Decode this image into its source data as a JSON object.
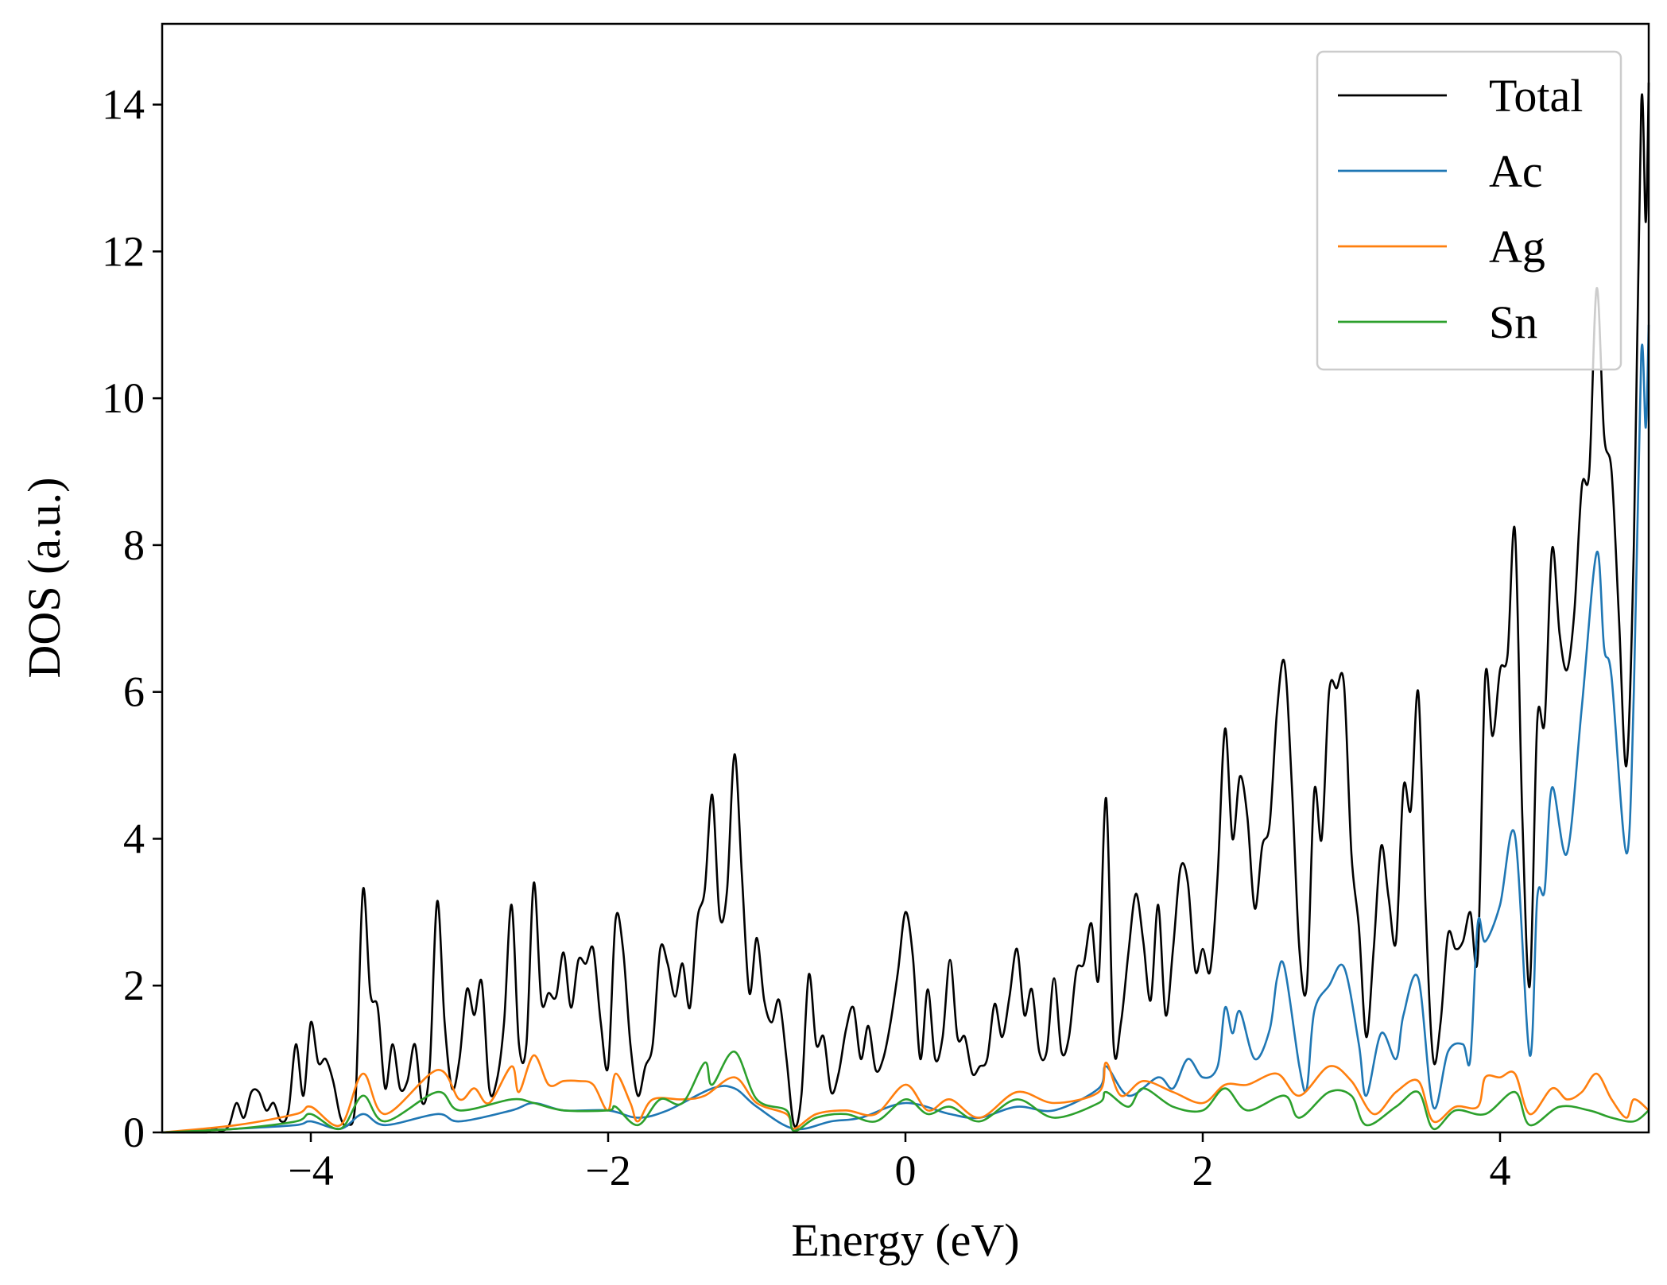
{
  "chart_data": {
    "type": "line",
    "title": "",
    "xlabel": "Energy (eV)",
    "ylabel": "DOS (a.u.)",
    "xlim": [
      -5,
      5
    ],
    "ylim": [
      0,
      15.1
    ],
    "xticks": [
      -4,
      -2,
      0,
      2,
      4
    ],
    "xtick_labels": [
      "−4",
      "−2",
      "0",
      "2",
      "4"
    ],
    "yticks": [
      0,
      2,
      4,
      6,
      8,
      10,
      12,
      14
    ],
    "ytick_labels": [
      "0",
      "2",
      "4",
      "6",
      "8",
      "10",
      "12",
      "14"
    ],
    "grid": false,
    "legend_position": "top-right",
    "series": [
      {
        "name": "Total",
        "color": "#000000",
        "x": [
          -5,
          -4.75,
          -4.7,
          -4.65,
          -4.6,
          -4.55,
          -4.5,
          -4.45,
          -4.4,
          -4.35,
          -4.3,
          -4.25,
          -4.2,
          -4.15,
          -4.1,
          -4.05,
          -4.0,
          -3.95,
          -3.9,
          -3.85,
          -3.8,
          -3.75,
          -3.7,
          -3.65,
          -3.6,
          -3.55,
          -3.5,
          -3.45,
          -3.4,
          -3.35,
          -3.3,
          -3.25,
          -3.2,
          -3.15,
          -3.1,
          -3.05,
          -3.0,
          -2.95,
          -2.9,
          -2.85,
          -2.8,
          -2.75,
          -2.7,
          -2.65,
          -2.6,
          -2.55,
          -2.5,
          -2.45,
          -2.4,
          -2.35,
          -2.3,
          -2.25,
          -2.2,
          -2.15,
          -2.1,
          -2.05,
          -2.0,
          -1.95,
          -1.9,
          -1.85,
          -1.8,
          -1.75,
          -1.7,
          -1.65,
          -1.6,
          -1.55,
          -1.5,
          -1.45,
          -1.4,
          -1.35,
          -1.3,
          -1.25,
          -1.2,
          -1.15,
          -1.1,
          -1.05,
          -1.0,
          -0.95,
          -0.9,
          -0.85,
          -0.8,
          -0.75,
          -0.7,
          -0.65,
          -0.6,
          -0.55,
          -0.5,
          -0.45,
          -0.4,
          -0.35,
          -0.3,
          -0.25,
          -0.2,
          -0.15,
          -0.1,
          -0.05,
          0.0,
          0.05,
          0.1,
          0.15,
          0.2,
          0.25,
          0.3,
          0.35,
          0.4,
          0.45,
          0.5,
          0.55,
          0.6,
          0.65,
          0.7,
          0.75,
          0.8,
          0.85,
          0.9,
          0.95,
          1.0,
          1.05,
          1.1,
          1.15,
          1.2,
          1.25,
          1.3,
          1.35,
          1.4,
          1.45,
          1.5,
          1.55,
          1.6,
          1.65,
          1.7,
          1.75,
          1.8,
          1.85,
          1.9,
          1.95,
          2.0,
          2.05,
          2.1,
          2.15,
          2.2,
          2.25,
          2.3,
          2.35,
          2.4,
          2.45,
          2.5,
          2.55,
          2.6,
          2.65,
          2.7,
          2.75,
          2.8,
          2.85,
          2.9,
          2.95,
          3.0,
          3.05,
          3.1,
          3.15,
          3.2,
          3.25,
          3.3,
          3.35,
          3.4,
          3.45,
          3.5,
          3.55,
          3.6,
          3.65,
          3.7,
          3.75,
          3.8,
          3.85,
          3.9,
          3.95,
          4.0,
          4.05,
          4.1,
          4.15,
          4.2,
          4.25,
          4.3,
          4.35,
          4.4,
          4.45,
          4.5,
          4.55,
          4.6,
          4.65,
          4.7,
          4.75,
          4.8,
          4.85,
          4.9,
          4.95,
          4.98,
          5.0
        ],
        "y": [
          0,
          0,
          0,
          0.05,
          0.02,
          0.1,
          0.4,
          0.2,
          0.55,
          0.55,
          0.3,
          0.4,
          0.15,
          0.3,
          1.2,
          0.5,
          1.5,
          0.95,
          1.0,
          0.7,
          0.2,
          0.1,
          0.4,
          3.3,
          1.9,
          1.7,
          0.6,
          1.2,
          0.6,
          0.7,
          1.2,
          0.4,
          0.9,
          3.15,
          1.5,
          0.6,
          1.0,
          1.95,
          1.6,
          2.05,
          0.6,
          0.7,
          1.5,
          3.1,
          1.2,
          1.2,
          3.4,
          1.8,
          1.9,
          1.85,
          2.45,
          1.7,
          2.35,
          2.3,
          2.5,
          1.5,
          0.9,
          2.9,
          2.5,
          1.2,
          0.5,
          0.9,
          1.2,
          2.5,
          2.3,
          1.85,
          2.3,
          1.7,
          2.9,
          3.3,
          4.6,
          2.95,
          3.3,
          5.15,
          3.5,
          1.9,
          2.65,
          1.8,
          1.5,
          1.8,
          1.0,
          0.1,
          0.5,
          2.15,
          1.2,
          1.3,
          0.55,
          0.8,
          1.4,
          1.7,
          1.0,
          1.45,
          0.85,
          1.0,
          1.5,
          2.2,
          3.0,
          2.4,
          1.0,
          1.95,
          1.0,
          1.3,
          2.35,
          1.3,
          1.3,
          0.8,
          0.9,
          1.0,
          1.75,
          1.3,
          1.85,
          2.5,
          1.6,
          1.95,
          1.1,
          1.1,
          2.1,
          1.1,
          1.3,
          2.2,
          2.3,
          2.85,
          2.1,
          4.55,
          1.2,
          1.5,
          2.45,
          3.25,
          2.6,
          1.8,
          3.1,
          1.6,
          2.5,
          3.6,
          3.4,
          2.2,
          2.5,
          2.2,
          3.5,
          5.5,
          4.0,
          4.85,
          4.3,
          3.05,
          3.9,
          4.2,
          5.75,
          6.4,
          4.7,
          2.5,
          2.0,
          4.65,
          4.0,
          6.0,
          6.05,
          6.1,
          3.8,
          2.8,
          1.3,
          2.5,
          3.9,
          3.2,
          2.6,
          4.7,
          4.4,
          6.0,
          3.0,
          1.0,
          1.5,
          2.7,
          2.5,
          2.6,
          3.0,
          2.4,
          6.2,
          5.4,
          6.3,
          6.5,
          8.2,
          4.3,
          2.0,
          5.6,
          5.6,
          7.95,
          6.8,
          6.3,
          7.1,
          8.8,
          9.0,
          11.5,
          9.5,
          9.0,
          7.0,
          5.0,
          8.0,
          14.0,
          12.4,
          14.3
        ]
      },
      {
        "name": "Ac",
        "color": "#1f77b4",
        "x": [
          -5,
          -4.5,
          -4.1,
          -4.0,
          -3.8,
          -3.65,
          -3.5,
          -3.15,
          -3.0,
          -2.65,
          -2.5,
          -2.3,
          -2.0,
          -1.8,
          -1.6,
          -1.3,
          -1.15,
          -1.0,
          -0.75,
          -0.5,
          -0.3,
          0,
          0.3,
          0.5,
          0.75,
          1.0,
          1.3,
          1.35,
          1.5,
          1.7,
          1.8,
          1.9,
          2.0,
          2.1,
          2.15,
          2.2,
          2.25,
          2.35,
          2.45,
          2.5,
          2.55,
          2.65,
          2.7,
          2.75,
          2.85,
          2.95,
          3.05,
          3.1,
          3.2,
          3.3,
          3.35,
          3.45,
          3.55,
          3.65,
          3.75,
          3.8,
          3.85,
          3.9,
          4.0,
          4.1,
          4.2,
          4.25,
          4.3,
          4.35,
          4.45,
          4.55,
          4.65,
          4.7,
          4.75,
          4.85,
          4.9,
          4.95,
          4.98,
          5.0
        ],
        "y": [
          0,
          0.05,
          0.1,
          0.15,
          0.05,
          0.25,
          0.1,
          0.25,
          0.15,
          0.3,
          0.4,
          0.3,
          0.3,
          0.2,
          0.3,
          0.6,
          0.6,
          0.35,
          0.05,
          0.15,
          0.2,
          0.4,
          0.25,
          0.2,
          0.35,
          0.3,
          0.6,
          0.9,
          0.5,
          0.75,
          0.6,
          1.0,
          0.75,
          0.9,
          1.7,
          1.35,
          1.65,
          1.0,
          1.4,
          2.1,
          2.25,
          0.9,
          0.6,
          1.65,
          2.0,
          2.25,
          1.2,
          0.5,
          1.35,
          1.0,
          1.6,
          2.1,
          0.35,
          1.1,
          1.2,
          1.0,
          2.85,
          2.6,
          3.1,
          4.05,
          1.05,
          3.2,
          3.3,
          4.7,
          3.8,
          5.8,
          7.9,
          6.6,
          6.2,
          3.8,
          6.0,
          10.6,
          9.6,
          11.0
        ]
      },
      {
        "name": "Ag",
        "color": "#ff7f0e",
        "x": [
          -5,
          -4.5,
          -4.1,
          -4.0,
          -3.8,
          -3.65,
          -3.5,
          -3.15,
          -3.0,
          -2.9,
          -2.8,
          -2.65,
          -2.6,
          -2.5,
          -2.4,
          -2.3,
          -2.2,
          -2.1,
          -2.0,
          -1.95,
          -1.85,
          -1.8,
          -1.7,
          -1.5,
          -1.35,
          -1.15,
          -1.0,
          -0.8,
          -0.75,
          -0.6,
          -0.4,
          -0.2,
          0,
          0.15,
          0.3,
          0.5,
          0.75,
          1.0,
          1.3,
          1.35,
          1.45,
          1.6,
          1.8,
          2.0,
          2.15,
          2.3,
          2.5,
          2.65,
          2.85,
          3.0,
          3.15,
          3.3,
          3.45,
          3.55,
          3.7,
          3.85,
          3.9,
          4.0,
          4.1,
          4.2,
          4.35,
          4.45,
          4.55,
          4.65,
          4.75,
          4.85,
          4.9,
          5.0
        ],
        "y": [
          0,
          0.1,
          0.25,
          0.35,
          0.1,
          0.8,
          0.25,
          0.85,
          0.45,
          0.6,
          0.4,
          0.9,
          0.55,
          1.05,
          0.65,
          0.7,
          0.7,
          0.65,
          0.3,
          0.8,
          0.4,
          0.15,
          0.45,
          0.45,
          0.5,
          0.75,
          0.4,
          0.25,
          0.05,
          0.25,
          0.3,
          0.25,
          0.65,
          0.3,
          0.45,
          0.2,
          0.55,
          0.4,
          0.55,
          0.95,
          0.5,
          0.7,
          0.55,
          0.4,
          0.65,
          0.65,
          0.8,
          0.5,
          0.9,
          0.7,
          0.25,
          0.55,
          0.7,
          0.15,
          0.35,
          0.35,
          0.75,
          0.75,
          0.8,
          0.25,
          0.6,
          0.45,
          0.55,
          0.8,
          0.45,
          0.2,
          0.45,
          0.3
        ]
      },
      {
        "name": "Sn",
        "color": "#2ca02c",
        "x": [
          -5,
          -4.5,
          -4.1,
          -4.0,
          -3.8,
          -3.65,
          -3.5,
          -3.15,
          -3.0,
          -2.65,
          -2.5,
          -2.3,
          -2.0,
          -1.95,
          -1.8,
          -1.65,
          -1.5,
          -1.35,
          -1.3,
          -1.15,
          -1.0,
          -0.8,
          -0.75,
          -0.6,
          -0.4,
          -0.2,
          0,
          0.15,
          0.3,
          0.5,
          0.75,
          1.0,
          1.3,
          1.35,
          1.5,
          1.6,
          1.8,
          2.0,
          2.15,
          2.3,
          2.55,
          2.65,
          2.85,
          3.0,
          3.1,
          3.3,
          3.45,
          3.55,
          3.7,
          3.9,
          4.1,
          4.2,
          4.4,
          4.6,
          4.75,
          4.9,
          5.0
        ],
        "y": [
          0,
          0.05,
          0.15,
          0.25,
          0.05,
          0.5,
          0.15,
          0.55,
          0.3,
          0.45,
          0.4,
          0.3,
          0.3,
          0.35,
          0.1,
          0.45,
          0.4,
          0.95,
          0.65,
          1.1,
          0.45,
          0.3,
          0.02,
          0.2,
          0.25,
          0.15,
          0.45,
          0.25,
          0.35,
          0.15,
          0.45,
          0.2,
          0.4,
          0.55,
          0.35,
          0.6,
          0.35,
          0.3,
          0.6,
          0.3,
          0.5,
          0.2,
          0.55,
          0.5,
          0.1,
          0.35,
          0.55,
          0.05,
          0.3,
          0.25,
          0.55,
          0.1,
          0.35,
          0.3,
          0.2,
          0.15,
          0.3
        ]
      }
    ]
  }
}
